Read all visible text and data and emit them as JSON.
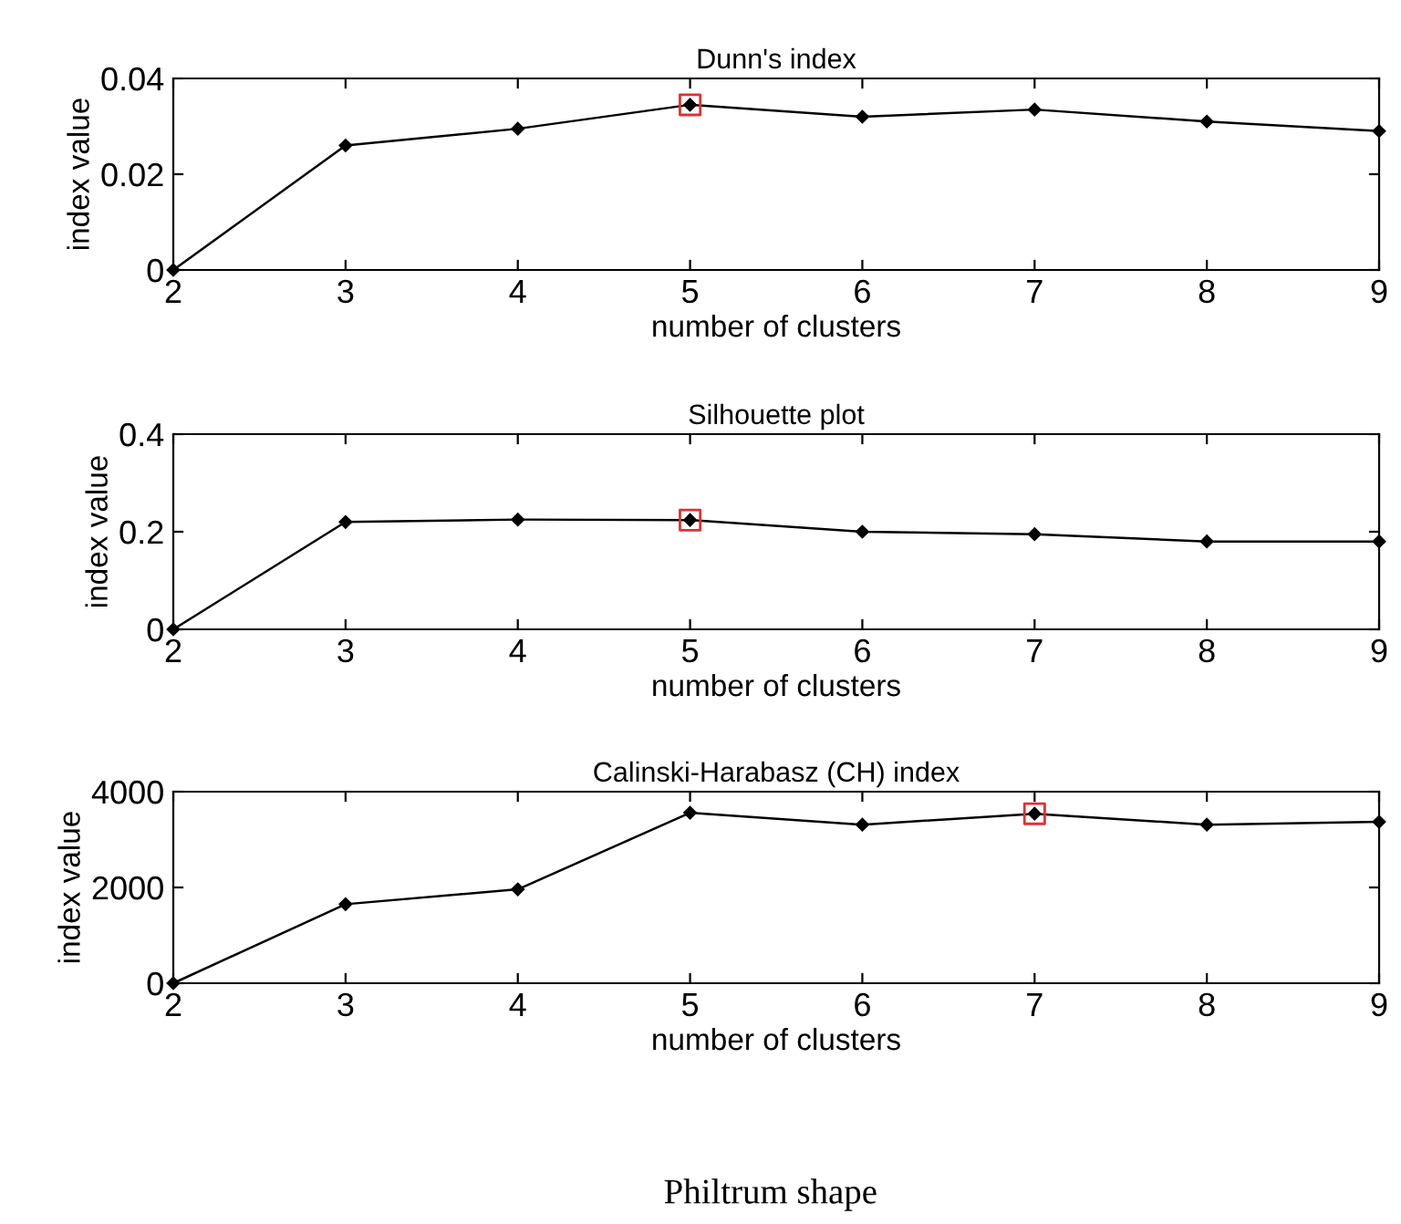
{
  "chart_data": [
    {
      "type": "line",
      "title": "Dunn's index",
      "xlabel": "number of clusters",
      "ylabel": "index value",
      "x": [
        2,
        3,
        4,
        5,
        6,
        7,
        8,
        9
      ],
      "xlim": [
        2,
        9
      ],
      "xticks": [
        2,
        3,
        4,
        5,
        6,
        7,
        8,
        9
      ],
      "ylim": [
        0,
        0.04
      ],
      "yticks": [
        0,
        0.02,
        0.04
      ],
      "grid": false,
      "legend": false,
      "marker": "diamond",
      "line_style": "solid",
      "series": [
        {
          "color": "#000000",
          "values": [
            0,
            0.026,
            0.0295,
            0.0345,
            0.032,
            0.0335,
            0.031,
            0.029
          ]
        },
        {
          "type": "scatter",
          "marker": "square",
          "color": "#e03030",
          "values": [
            null,
            null,
            null,
            0.0345,
            null,
            null,
            null,
            null
          ]
        }
      ]
    },
    {
      "type": "line",
      "title": "Silhouette plot",
      "xlabel": "number of clusters",
      "ylabel": "index value",
      "x": [
        2,
        3,
        4,
        5,
        6,
        7,
        8,
        9
      ],
      "xlim": [
        2,
        9
      ],
      "xticks": [
        2,
        3,
        4,
        5,
        6,
        7,
        8,
        9
      ],
      "ylim": [
        0,
        0.4
      ],
      "yticks": [
        0,
        0.2,
        0.4
      ],
      "grid": false,
      "legend": false,
      "marker": "diamond",
      "line_style": "solid",
      "series": [
        {
          "color": "#000000",
          "values": [
            0,
            0.22,
            0.225,
            0.224,
            0.2,
            0.195,
            0.18,
            0.18
          ]
        },
        {
          "type": "scatter",
          "marker": "square",
          "color": "#e03030",
          "values": [
            null,
            null,
            null,
            0.224,
            null,
            null,
            null,
            null
          ]
        }
      ]
    },
    {
      "type": "line",
      "title": "Calinski-Harabasz (CH) index",
      "xlabel": "number of clusters",
      "ylabel": "index value",
      "x": [
        2,
        3,
        4,
        5,
        6,
        7,
        8,
        9
      ],
      "xlim": [
        2,
        9
      ],
      "xticks": [
        2,
        3,
        4,
        5,
        6,
        7,
        8,
        9
      ],
      "ylim": [
        0,
        4000
      ],
      "yticks": [
        0,
        2000,
        4000
      ],
      "grid": false,
      "legend": false,
      "marker": "diamond",
      "line_style": "solid",
      "annotations": [
        "Philtrum shape"
      ],
      "series": [
        {
          "color": "#000000",
          "values": [
            0,
            1650,
            1960,
            3560,
            3310,
            3540,
            3310,
            3370
          ]
        },
        {
          "type": "scatter",
          "marker": "square",
          "color": "#e03030",
          "values": [
            null,
            null,
            null,
            null,
            null,
            3540,
            null,
            null
          ]
        }
      ]
    }
  ]
}
